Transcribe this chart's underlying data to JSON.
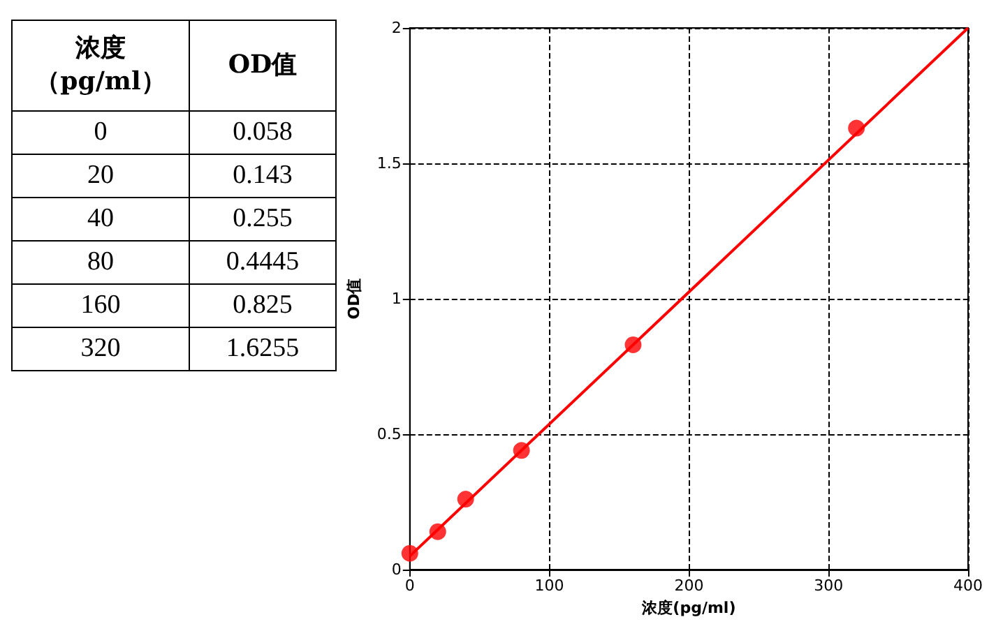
{
  "chart_data": [
    {
      "type": "other",
      "annotations": [
        "浓度（pg/ml）",
        "OD值",
        "0",
        "0.058",
        "20",
        "0.143",
        "40",
        "0.255",
        "80",
        "0.4445",
        "160",
        "0.825",
        "320",
        "1.6255"
      ]
    },
    {
      "type": "scatter",
      "xlabel": "浓度(pg/ml)",
      "ylabel": "OD值",
      "series": [
        {
          "color": "#ff0000",
          "x": [
            0,
            20,
            40,
            80,
            160,
            320
          ],
          "values": [
            0.06,
            0.14,
            0.26,
            0.44,
            0.83,
            1.63
          ]
        },
        {
          "type": "line",
          "color": "#ff0000",
          "marker": "none",
          "x": [
            0,
            400
          ],
          "values": [
            0.05,
            2.0
          ]
        }
      ],
      "marker": "circle",
      "line_style": "solid",
      "grid": true,
      "xlim": [
        0,
        400
      ],
      "xticks": [
        0,
        100,
        200,
        300,
        400
      ],
      "ylim": [
        0,
        2
      ],
      "yticks": [
        0,
        0.5,
        1,
        1.5,
        2
      ]
    }
  ]
}
